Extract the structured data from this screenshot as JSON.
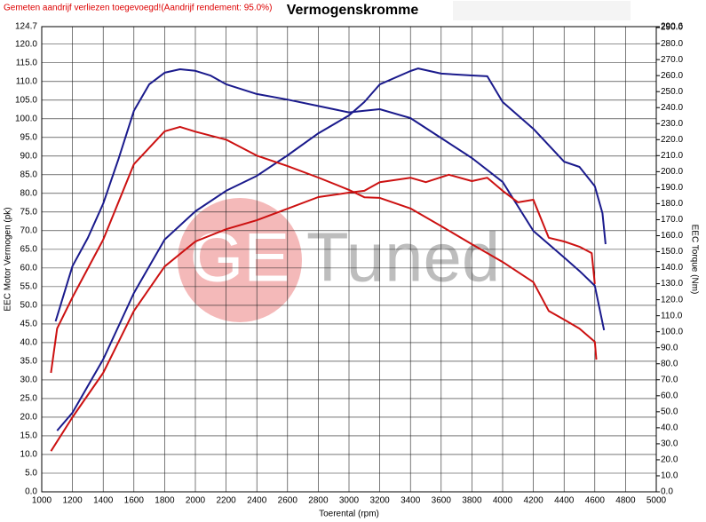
{
  "chart_data": {
    "type": "line",
    "title": "Vermogenskromme",
    "subtitle": "Gemeten aandrijf verliezen toegevoegd!(Aandrijf rendement: 95.0%)",
    "xlabel": "Toerental (rpm)",
    "ylabel": "EEC Motor Vermogen (pk)",
    "y2label": "EEC Torque (Nm)",
    "watermark": [
      "GE",
      "Tuned"
    ],
    "grid": true,
    "xlim": [
      1000,
      5000
    ],
    "xticks": [
      1000,
      1200,
      1400,
      1600,
      1800,
      2000,
      2200,
      2400,
      2600,
      2800,
      3000,
      3200,
      3400,
      3600,
      3800,
      4000,
      4200,
      4400,
      4600,
      4800,
      5000
    ],
    "ylim": [
      0,
      124.7
    ],
    "yticks": [
      {
        "value": 0,
        "label": "0.0"
      },
      {
        "value": 5,
        "label": "5.0"
      },
      {
        "value": 10,
        "label": "10.0"
      },
      {
        "value": 15,
        "label": "15.0"
      },
      {
        "value": 20,
        "label": "20.0"
      },
      {
        "value": 25,
        "label": "25.0"
      },
      {
        "value": 30,
        "label": "30.0"
      },
      {
        "value": 35,
        "label": "35.0"
      },
      {
        "value": 40,
        "label": "40.0"
      },
      {
        "value": 45,
        "label": "45.0"
      },
      {
        "value": 50,
        "label": "50.0"
      },
      {
        "value": 55,
        "label": "55.0"
      },
      {
        "value": 60,
        "label": "60.0"
      },
      {
        "value": 65,
        "label": "65.0"
      },
      {
        "value": 70,
        "label": "70.0"
      },
      {
        "value": 75,
        "label": "75.0"
      },
      {
        "value": 80,
        "label": "80.0"
      },
      {
        "value": 85,
        "label": "85.0"
      },
      {
        "value": 90,
        "label": "90.0"
      },
      {
        "value": 95,
        "label": "95.0"
      },
      {
        "value": 100,
        "label": "100.0"
      },
      {
        "value": 105,
        "label": "105.0"
      },
      {
        "value": 110,
        "label": "110.0"
      },
      {
        "value": 115,
        "label": "115.0"
      },
      {
        "value": 120,
        "label": "120.0"
      },
      124.7
    ],
    "y2lim": [
      0,
      290.6
    ],
    "y2ticks": [
      {
        "value": 0,
        "label": "0.0"
      },
      {
        "value": 10,
        "label": "10.0"
      },
      {
        "value": 20,
        "label": "20.0"
      },
      {
        "value": 30,
        "label": "30.0"
      },
      {
        "value": 40,
        "label": "40.0"
      },
      {
        "value": 50,
        "label": "50.0"
      },
      {
        "value": 60,
        "label": "60.0"
      },
      {
        "value": 70,
        "label": "70.0"
      },
      {
        "value": 80,
        "label": "80.0"
      },
      {
        "value": 90,
        "label": "90.0"
      },
      {
        "value": 100,
        "label": "100.0"
      },
      {
        "value": 110,
        "label": "110.0"
      },
      {
        "value": 120,
        "label": "120.0"
      },
      {
        "value": 130,
        "label": "130.0"
      },
      {
        "value": 140,
        "label": "140.0"
      },
      {
        "value": 150,
        "label": "150.0"
      },
      {
        "value": 160,
        "label": "160.0"
      },
      {
        "value": 170,
        "label": "170.0"
      },
      {
        "value": 180,
        "label": "180.0"
      },
      {
        "value": 190,
        "label": "190.0"
      },
      {
        "value": 200,
        "label": "200.0"
      },
      {
        "value": 210,
        "label": "210.0"
      },
      {
        "value": 220,
        "label": "220.0"
      },
      {
        "value": 230,
        "label": "230.0"
      },
      {
        "value": 240,
        "label": "240.0"
      },
      {
        "value": 250,
        "label": "250.0"
      },
      {
        "value": 260,
        "label": "260.0"
      },
      {
        "value": 270,
        "label": "270.0"
      },
      {
        "value": 280,
        "label": "280.0"
      },
      {
        "value": 290,
        "label": "290.0"
      },
      290.6
    ],
    "series": [
      {
        "color": "#1a1a8c",
        "axis": "y",
        "x": [
          1100,
          1200,
          1400,
          1600,
          1800,
          2000,
          2200,
          2400,
          2600,
          2800,
          3000,
          3100,
          3200,
          3400,
          3450,
          3600,
          3800,
          3900,
          4000,
          4200,
          4400,
          4500,
          4600,
          4650,
          4670
        ],
        "values": [
          16.4,
          21.2,
          35.5,
          53.3,
          67.6,
          75.2,
          80.7,
          84.7,
          90.2,
          96.1,
          100.9,
          104.5,
          109.2,
          112.8,
          113.5,
          112.1,
          111.6,
          111.4,
          104.5,
          97.3,
          88.5,
          87.1,
          81.9,
          74.7,
          66.4
        ]
      },
      {
        "color": "#1a1a8c",
        "axis": "y2",
        "x": [
          1090,
          1200,
          1300,
          1400,
          1500,
          1600,
          1700,
          1800,
          1900,
          2000,
          2100,
          2200,
          2400,
          2600,
          2800,
          3000,
          3100,
          3200,
          3400,
          3600,
          3800,
          4000,
          4200,
          4400,
          4500,
          4600,
          4660
        ],
        "values": [
          106.5,
          141,
          158.6,
          180,
          208,
          238,
          254.6,
          261.8,
          264,
          263,
          260,
          254.6,
          248.5,
          245,
          241,
          237,
          238,
          239,
          233.5,
          221,
          208.5,
          193.6,
          163,
          146.4,
          138,
          128.7,
          101
        ]
      },
      {
        "color": "#cc1111",
        "axis": "y",
        "x": [
          1060,
          1200,
          1400,
          1600,
          1800,
          2000,
          2200,
          2400,
          2600,
          2800,
          3000,
          3100,
          3200,
          3400,
          3500,
          3650,
          3800,
          3900,
          4000,
          4100,
          4200,
          4300,
          4400,
          4500,
          4580,
          4600
        ],
        "values": [
          10.9,
          20,
          31.9,
          48.5,
          60.4,
          67.1,
          70.4,
          72.8,
          75.9,
          79,
          80.2,
          80.7,
          83,
          84.2,
          83,
          85,
          83.3,
          84.2,
          80.7,
          77.6,
          78.3,
          68.1,
          67.1,
          65.7,
          64,
          55.7
        ]
      },
      {
        "color": "#cc1111",
        "axis": "y2",
        "x": [
          1060,
          1100,
          1200,
          1400,
          1600,
          1800,
          1900,
          2000,
          2200,
          2400,
          2600,
          2800,
          3000,
          3100,
          3200,
          3400,
          3600,
          3800,
          4000,
          4200,
          4300,
          4400,
          4500,
          4600,
          4610
        ],
        "values": [
          74.3,
          102,
          121.5,
          157.5,
          204.7,
          225.2,
          228,
          225,
          220,
          210,
          203.5,
          196.3,
          188.6,
          184,
          183.6,
          177,
          166,
          154.7,
          143.6,
          131,
          113,
          107.6,
          102,
          93.7,
          82.6
        ]
      }
    ]
  }
}
